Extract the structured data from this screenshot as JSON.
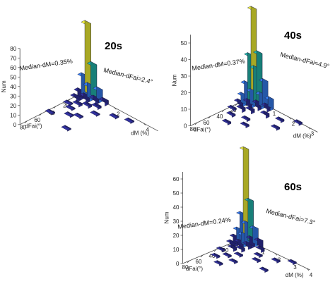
{
  "chart_data": [
    {
      "type": "bar3d",
      "title": "20s",
      "xlabel": "dFai(°)",
      "ylabel": "dM (%)",
      "zlabel": "Num",
      "x_ticks": [
        "0",
        "20",
        "40",
        "60",
        "80"
      ],
      "y_ticks": [
        "0",
        "2",
        "4"
      ],
      "z_ticks": [
        "0",
        "10",
        "20",
        "30",
        "40",
        "50",
        "60",
        "70",
        "80"
      ],
      "zlim": [
        0,
        80
      ],
      "annotations": [
        "Median-dM=0.35%",
        "Median-dFai=2.4°"
      ],
      "bars": [
        {
          "dFai": 0,
          "dM": 0.0,
          "count": 75
        },
        {
          "dFai": 0,
          "dM": 0.4,
          "count": 35
        },
        {
          "dFai": 5,
          "dM": 0.0,
          "count": 22
        },
        {
          "dFai": 5,
          "dM": 0.4,
          "count": 15
        },
        {
          "dFai": 0,
          "dM": 0.8,
          "count": 12
        },
        {
          "dFai": 10,
          "dM": 0.0,
          "count": 8
        },
        {
          "dFai": 10,
          "dM": 0.4,
          "count": 6
        },
        {
          "dFai": 5,
          "dM": 0.8,
          "count": 5
        },
        {
          "dFai": 15,
          "dM": 0.0,
          "count": 4
        },
        {
          "dFai": 0,
          "dM": 1.2,
          "count": 4
        },
        {
          "dFai": 15,
          "dM": 0.8,
          "count": 2
        },
        {
          "dFai": 20,
          "dM": 0.4,
          "count": 2
        },
        {
          "dFai": 10,
          "dM": 1.2,
          "count": 2
        },
        {
          "dFai": 25,
          "dM": 0.0,
          "count": 1
        },
        {
          "dFai": 30,
          "dM": 0.4,
          "count": 1
        },
        {
          "dFai": 20,
          "dM": 1.6,
          "count": 1
        },
        {
          "dFai": 35,
          "dM": 1.2,
          "count": 1
        },
        {
          "dFai": 40,
          "dM": 0.8,
          "count": 1
        },
        {
          "dFai": 50,
          "dM": 0.0,
          "count": 1
        },
        {
          "dFai": 10,
          "dM": 2.4,
          "count": 1
        },
        {
          "dFai": 60,
          "dM": 1.6,
          "count": 1
        },
        {
          "dFai": 5,
          "dM": 3.2,
          "count": 1
        }
      ]
    },
    {
      "type": "bar3d",
      "title": "40s",
      "xlabel": "dFai(°)",
      "ylabel": "dM (%)",
      "zlabel": "Num",
      "x_ticks": [
        "0",
        "20",
        "40",
        "60",
        "80"
      ],
      "y_ticks": [
        "0",
        "1",
        "2",
        "3"
      ],
      "z_ticks": [
        "0",
        "10",
        "20",
        "30",
        "40",
        "50"
      ],
      "zlim": [
        0,
        55
      ],
      "annotations": [
        "Median-dM=0.37%",
        "Median-dFai=4.9°"
      ],
      "bars": [
        {
          "dFai": 0,
          "dM": 0.0,
          "count": 55
        },
        {
          "dFai": 0,
          "dM": 0.3,
          "count": 30
        },
        {
          "dFai": 5,
          "dM": 0.0,
          "count": 28
        },
        {
          "dFai": 5,
          "dM": 0.3,
          "count": 22
        },
        {
          "dFai": 0,
          "dM": 0.6,
          "count": 15
        },
        {
          "dFai": 10,
          "dM": 0.0,
          "count": 12
        },
        {
          "dFai": 10,
          "dM": 0.3,
          "count": 9
        },
        {
          "dFai": 5,
          "dM": 0.6,
          "count": 8
        },
        {
          "dFai": 15,
          "dM": 0.0,
          "count": 6
        },
        {
          "dFai": 0,
          "dM": 0.9,
          "count": 6
        },
        {
          "dFai": 15,
          "dM": 0.3,
          "count": 4
        },
        {
          "dFai": 10,
          "dM": 0.6,
          "count": 4
        },
        {
          "dFai": 20,
          "dM": 0.0,
          "count": 3
        },
        {
          "dFai": 5,
          "dM": 0.9,
          "count": 3
        },
        {
          "dFai": 20,
          "dM": 0.6,
          "count": 2
        },
        {
          "dFai": 25,
          "dM": 0.3,
          "count": 2
        },
        {
          "dFai": 15,
          "dM": 1.2,
          "count": 2
        },
        {
          "dFai": 30,
          "dM": 0.0,
          "count": 1
        },
        {
          "dFai": 35,
          "dM": 0.9,
          "count": 1
        },
        {
          "dFai": 40,
          "dM": 0.3,
          "count": 1
        },
        {
          "dFai": 10,
          "dM": 1.8,
          "count": 1
        },
        {
          "dFai": 45,
          "dM": 1.2,
          "count": 1
        },
        {
          "dFai": 55,
          "dM": 0.6,
          "count": 1
        },
        {
          "dFai": 25,
          "dM": 2.1,
          "count": 1
        },
        {
          "dFai": 0,
          "dM": 2.4,
          "count": 1
        }
      ]
    },
    {
      "type": "bar3d",
      "title": "60s",
      "xlabel": "dFai(°)",
      "ylabel": "dM (%)",
      "zlabel": "Num",
      "x_ticks": [
        "0",
        "20",
        "40",
        "60",
        "80"
      ],
      "y_ticks": [
        "0",
        "1",
        "2",
        "3",
        "4"
      ],
      "z_ticks": [
        "0",
        "10",
        "20",
        "30",
        "40",
        "50",
        "60"
      ],
      "zlim": [
        0,
        65
      ],
      "annotations": [
        "Median-dM=0.24%",
        "Median-dFai=7.3°"
      ],
      "bars": [
        {
          "dFai": 0,
          "dM": 0.0,
          "count": 65
        },
        {
          "dFai": 0,
          "dM": 0.3,
          "count": 30
        },
        {
          "dFai": 5,
          "dM": 0.0,
          "count": 20
        },
        {
          "dFai": 5,
          "dM": 0.3,
          "count": 15
        },
        {
          "dFai": 0,
          "dM": 0.6,
          "count": 12
        },
        {
          "dFai": 10,
          "dM": 0.0,
          "count": 10
        },
        {
          "dFai": 10,
          "dM": 0.3,
          "count": 8
        },
        {
          "dFai": 5,
          "dM": 0.6,
          "count": 6
        },
        {
          "dFai": 15,
          "dM": 0.0,
          "count": 6
        },
        {
          "dFai": 0,
          "dM": 0.9,
          "count": 5
        },
        {
          "dFai": 15,
          "dM": 0.3,
          "count": 4
        },
        {
          "dFai": 20,
          "dM": 0.0,
          "count": 3
        },
        {
          "dFai": 10,
          "dM": 0.6,
          "count": 3
        },
        {
          "dFai": 20,
          "dM": 0.6,
          "count": 2
        },
        {
          "dFai": 25,
          "dM": 0.3,
          "count": 2
        },
        {
          "dFai": 5,
          "dM": 1.2,
          "count": 2
        },
        {
          "dFai": 30,
          "dM": 0.9,
          "count": 1
        },
        {
          "dFai": 35,
          "dM": 0.0,
          "count": 1
        },
        {
          "dFai": 40,
          "dM": 0.6,
          "count": 1
        },
        {
          "dFai": 15,
          "dM": 1.5,
          "count": 1
        },
        {
          "dFai": 45,
          "dM": 1.2,
          "count": 1
        },
        {
          "dFai": 50,
          "dM": 0.3,
          "count": 1
        },
        {
          "dFai": 25,
          "dM": 1.8,
          "count": 1
        },
        {
          "dFai": 60,
          "dM": 0.9,
          "count": 1
        },
        {
          "dFai": 10,
          "dM": 2.4,
          "count": 1
        },
        {
          "dFai": 35,
          "dM": 2.7,
          "count": 1
        },
        {
          "dFai": 0,
          "dM": 3.0,
          "count": 1
        }
      ]
    }
  ],
  "colors": {
    "low": "#2a2a8a",
    "mid": "#2f6fd6",
    "mid_high": "#1fa39a",
    "high": "#d8d830",
    "axis": "#444444"
  }
}
